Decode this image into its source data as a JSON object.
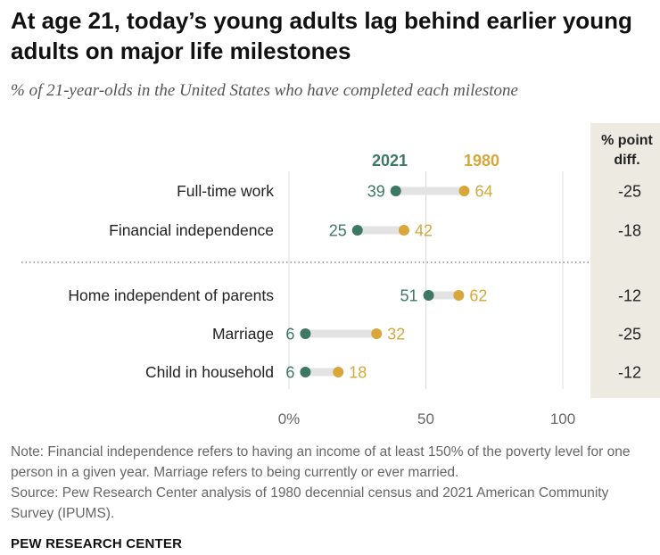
{
  "title": "At age 21, today’s young adults lag behind earlier young adults on major life milestones",
  "subtitle": "% of 21-year-olds in the United States who have completed each milestone",
  "colors": {
    "series_2021": "#3d7864",
    "series_1980": "#d7a73b",
    "range_bar": "#e3e3e3",
    "diff_panel": "#edeae1",
    "gridline": "#dcdcdc"
  },
  "chart_data": {
    "type": "dot",
    "categories": [
      "Full-time work",
      "Financial independence",
      "Home independent of parents",
      "Marriage",
      "Child in household"
    ],
    "series": [
      {
        "name": "2021",
        "values": [
          39,
          25,
          51,
          6,
          6
        ]
      },
      {
        "name": "1980",
        "values": [
          64,
          42,
          62,
          32,
          18
        ]
      }
    ],
    "diff_header": [
      "% point",
      "diff."
    ],
    "diff": [
      "-25",
      "-18",
      "-12",
      "-25",
      "-12"
    ],
    "xticks": [
      "0%",
      "50",
      "100"
    ],
    "xtick_values": [
      0,
      50,
      100
    ],
    "xlim": [
      0,
      100
    ],
    "grid": true
  },
  "note": "Note: Financial independence refers to having an income of at least 150% of the poverty level for one person in a given year. Marriage refers to being currently or ever married.",
  "source": "Source: Pew Research Center analysis of 1980 decennial census and 2021 American Community Survey (IPUMS).",
  "brand": "PEW RESEARCH CENTER"
}
